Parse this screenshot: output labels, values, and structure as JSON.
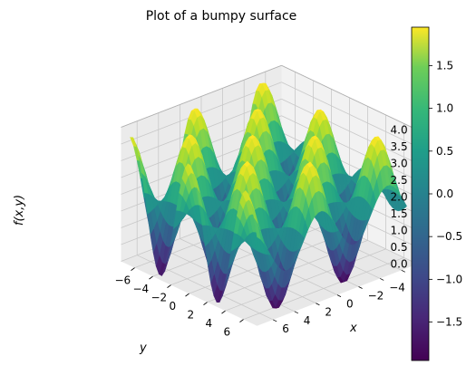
{
  "chart_data": {
    "type": "surface",
    "title": "Plot of a bumpy surface",
    "xlabel": "x",
    "ylabel": "y",
    "zlabel": "f(x,y)",
    "function": "sin(x) * cos(y) * (2 - small decay) ; sampled on grid",
    "x_range": [
      -6.5,
      7.5
    ],
    "y_range": [
      -6.5,
      7.5
    ],
    "zlim": [
      0,
      4
    ],
    "x_ticks": [
      "-6",
      "-4",
      "-2",
      "0",
      "2",
      "4",
      "6"
    ],
    "y_ticks": [
      "-6",
      "-4",
      "-2",
      "0",
      "2",
      "4",
      "6"
    ],
    "z_ticks": [
      "0.0",
      "0.5",
      "1.0",
      "1.5",
      "2.0",
      "2.5",
      "3.0",
      "3.5",
      "4.0"
    ],
    "colorbar": {
      "min": -1.95,
      "max": 1.95,
      "ticks": [
        "−1.5",
        "−1.0",
        "−0.5",
        "0.0",
        "0.5",
        "1.0",
        "1.5"
      ],
      "tick_values": [
        -1.5,
        -1.0,
        -0.5,
        0.0,
        0.5,
        1.0,
        1.5
      ],
      "colormap": "viridis"
    },
    "grid": true
  }
}
